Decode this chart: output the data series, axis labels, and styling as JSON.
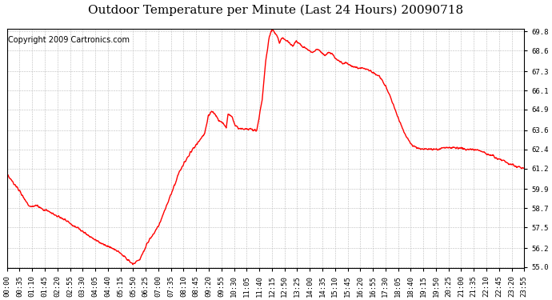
{
  "title": "Outdoor Temperature per Minute (Last 24 Hours) 20090718",
  "copyright": "Copyright 2009 Cartronics.com",
  "line_color": "#FF0000",
  "background_color": "#FFFFFF",
  "grid_color": "#BBBBBB",
  "ylim": [
    55.0,
    69.8
  ],
  "yticks": [
    55.0,
    56.2,
    57.5,
    58.7,
    59.9,
    61.2,
    62.4,
    63.6,
    64.9,
    66.1,
    67.3,
    68.6,
    69.8
  ],
  "xtick_labels": [
    "00:00",
    "00:35",
    "01:10",
    "01:45",
    "02:20",
    "02:55",
    "03:30",
    "04:05",
    "04:40",
    "05:15",
    "05:50",
    "06:25",
    "07:00",
    "07:35",
    "08:10",
    "08:45",
    "09:20",
    "09:55",
    "10:30",
    "11:05",
    "11:40",
    "12:15",
    "12:50",
    "13:25",
    "14:00",
    "14:35",
    "15:10",
    "15:45",
    "16:20",
    "16:55",
    "17:30",
    "18:05",
    "18:40",
    "19:15",
    "19:50",
    "20:25",
    "21:00",
    "21:35",
    "22:10",
    "22:45",
    "23:20",
    "23:55"
  ],
  "title_fontsize": 11,
  "copyright_fontsize": 7,
  "tick_fontsize": 6.5,
  "line_width": 1.0,
  "total_minutes": 1439
}
